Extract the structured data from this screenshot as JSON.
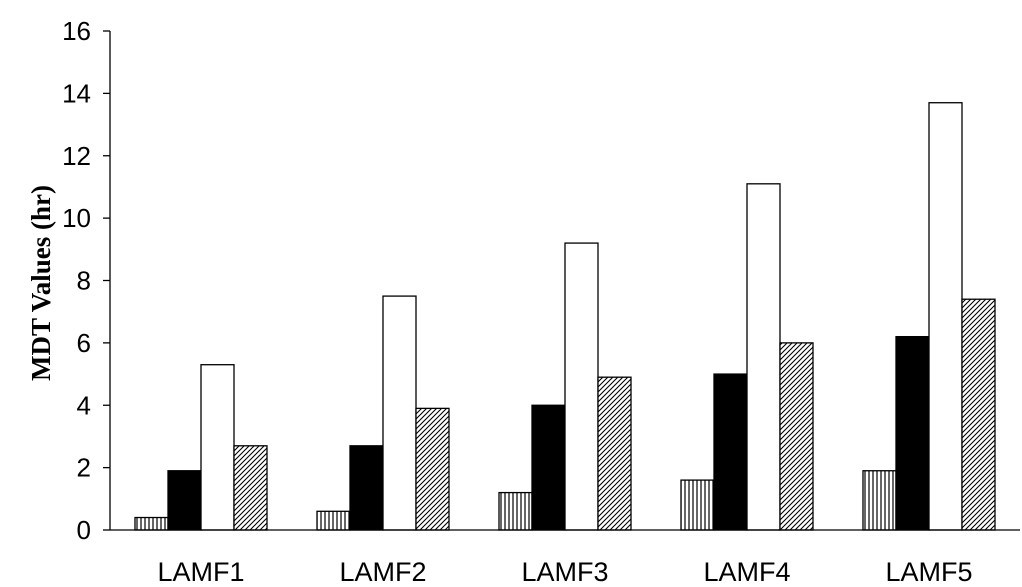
{
  "chart_data": {
    "type": "bar",
    "title": "",
    "xlabel": "",
    "ylabel": "MDT Values (hr)",
    "ylim": [
      0,
      16
    ],
    "yticks": [
      0,
      2,
      4,
      6,
      8,
      10,
      12,
      14,
      16
    ],
    "categories": [
      "LAMF1",
      "LAMF2",
      "LAMF3",
      "LAMF4",
      "LAMF5"
    ],
    "grid": false,
    "legend": "none",
    "series": [
      {
        "fill": "vertical-hatch",
        "color": "#000000",
        "values": [
          0.4,
          0.6,
          1.2,
          1.6,
          1.9
        ]
      },
      {
        "fill": "solid",
        "color": "#000000",
        "values": [
          1.9,
          2.7,
          4.0,
          5.0,
          6.2
        ]
      },
      {
        "fill": "none",
        "color": "#ffffff",
        "values": [
          5.3,
          7.5,
          9.2,
          11.1,
          13.7
        ]
      },
      {
        "fill": "diagonal-hatch",
        "color": "#000000",
        "values": [
          2.7,
          3.9,
          4.9,
          6.0,
          7.4
        ]
      }
    ]
  }
}
